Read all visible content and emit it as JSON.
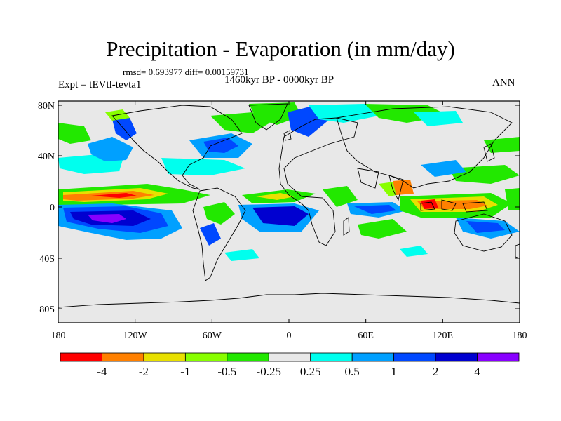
{
  "header": {
    "title": "Precipitation - Evaporation (in mm/day)",
    "stats": "rmsd= 0.693977 diff= 0.00159731",
    "experiment": "Expt = tEVtl-tevta1",
    "period": "1460kyr BP - 0000kyr BP",
    "season": "ANN"
  },
  "map": {
    "lat_ticks": [
      "80N",
      "40N",
      "0",
      "40S",
      "80S"
    ],
    "lon_ticks": [
      "180",
      "120W",
      "60W",
      "0",
      "60E",
      "120E",
      "180"
    ],
    "background_color": "#e8e8e8"
  },
  "colorbar": {
    "labels": [
      "-4",
      "-2",
      "-1",
      "-0.5",
      "-0.25",
      "0.25",
      "0.5",
      "1",
      "2",
      "4"
    ],
    "colors": [
      "#ff0000",
      "#ff8000",
      "#e8e000",
      "#88ff00",
      "#22e800",
      "#e8e8e8",
      "#00ffee",
      "#00a0ff",
      "#0048ff",
      "#0000d0",
      "#8800ff"
    ]
  }
}
